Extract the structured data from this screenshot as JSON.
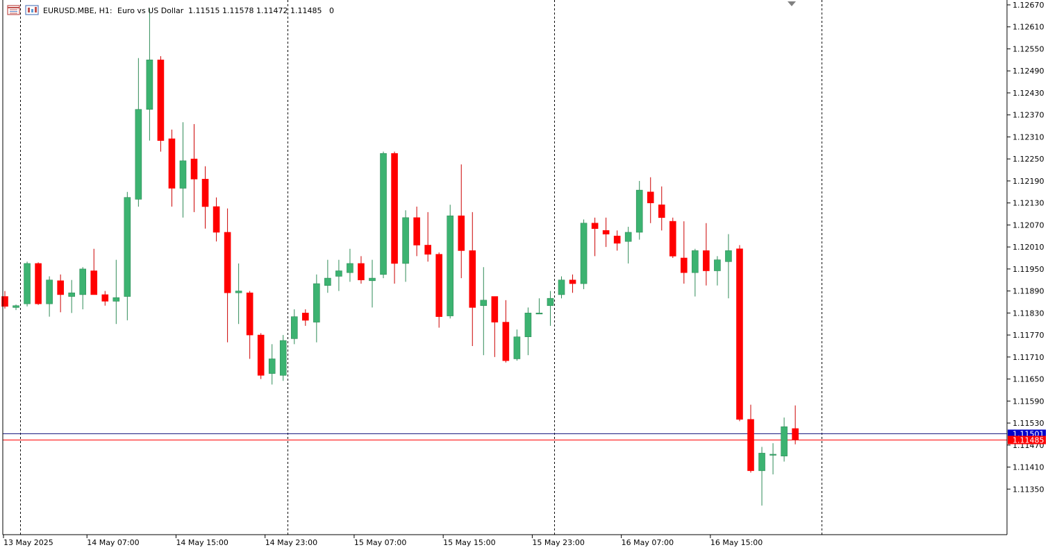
{
  "header": {
    "symbol_label": "EURUSD.MBE, H1:",
    "description": "Euro vs US Dollar",
    "ohlc": "1.11515 1.11578 1.11472 1.11485",
    "extra": "0",
    "icons": [
      "chart-window-icon",
      "instrument-icon"
    ]
  },
  "colors": {
    "bull": "#3cb371",
    "bear": "#ff0000",
    "wick_bull": "#2e8b57",
    "wick_bear": "#cc0000",
    "ask_line": "#1a1a80",
    "bid_line": "#ff0000",
    "ask_tag": "#0000cc",
    "bid_tag": "#ff0000"
  },
  "chart_data": {
    "type": "candlestick",
    "title": "",
    "xlabel": "",
    "ylabel": "",
    "ylim": [
      1.1129,
      1.1267
    ],
    "y_ticks": [
      "1.12670",
      "1.12610",
      "1.12550",
      "1.12490",
      "1.12430",
      "1.12370",
      "1.12310",
      "1.12250",
      "1.12190",
      "1.12130",
      "1.12070",
      "1.12010",
      "1.11950",
      "1.11890",
      "1.11830",
      "1.11770",
      "1.11710",
      "1.11650",
      "1.11590",
      "1.11530",
      "1.11470",
      "1.11410",
      "1.11350"
    ],
    "x_tick_labels": [
      "13 May 2025",
      "14 May 07:00",
      "14 May 15:00",
      "14 May 23:00",
      "15 May 07:00",
      "15 May 15:00",
      "15 May 23:00",
      "16 May 07:00",
      "16 May 15:00"
    ],
    "period_separators": 4,
    "ask_price": "1.11501",
    "bid_price": "1.11485",
    "candles": [
      {
        "o": 1.11875,
        "h": 1.1189,
        "l": 1.11842,
        "c": 1.11848
      },
      {
        "o": 1.11845,
        "h": 1.11853,
        "l": 1.11838,
        "c": 1.1185
      },
      {
        "o": 1.11855,
        "h": 1.1197,
        "l": 1.11848,
        "c": 1.11965
      },
      {
        "o": 1.11965,
        "h": 1.11968,
        "l": 1.11852,
        "c": 1.11855
      },
      {
        "o": 1.11855,
        "h": 1.1193,
        "l": 1.1182,
        "c": 1.1192
      },
      {
        "o": 1.11918,
        "h": 1.11935,
        "l": 1.11832,
        "c": 1.1188
      },
      {
        "o": 1.11875,
        "h": 1.1192,
        "l": 1.1183,
        "c": 1.11885
      },
      {
        "o": 1.1188,
        "h": 1.11955,
        "l": 1.1184,
        "c": 1.1195
      },
      {
        "o": 1.11945,
        "h": 1.12005,
        "l": 1.1188,
        "c": 1.1188
      },
      {
        "o": 1.1188,
        "h": 1.1189,
        "l": 1.1185,
        "c": 1.11862
      },
      {
        "o": 1.11862,
        "h": 1.11975,
        "l": 1.118,
        "c": 1.11872
      },
      {
        "o": 1.11875,
        "h": 1.1216,
        "l": 1.1181,
        "c": 1.12145
      },
      {
        "o": 1.1214,
        "h": 1.12525,
        "l": 1.1212,
        "c": 1.12385
      },
      {
        "o": 1.12385,
        "h": 1.1266,
        "l": 1.123,
        "c": 1.1252
      },
      {
        "o": 1.1252,
        "h": 1.1253,
        "l": 1.1227,
        "c": 1.123
      },
      {
        "o": 1.12305,
        "h": 1.1233,
        "l": 1.1212,
        "c": 1.1217
      },
      {
        "o": 1.1217,
        "h": 1.1235,
        "l": 1.1209,
        "c": 1.12245
      },
      {
        "o": 1.1225,
        "h": 1.12345,
        "l": 1.12105,
        "c": 1.12195
      },
      {
        "o": 1.12195,
        "h": 1.1223,
        "l": 1.1206,
        "c": 1.1212
      },
      {
        "o": 1.1212,
        "h": 1.12145,
        "l": 1.12025,
        "c": 1.1205
      },
      {
        "o": 1.1205,
        "h": 1.12115,
        "l": 1.1175,
        "c": 1.11885
      },
      {
        "o": 1.11885,
        "h": 1.11965,
        "l": 1.118,
        "c": 1.1189
      },
      {
        "o": 1.11885,
        "h": 1.1189,
        "l": 1.11705,
        "c": 1.1177
      },
      {
        "o": 1.1177,
        "h": 1.11775,
        "l": 1.1165,
        "c": 1.1166
      },
      {
        "o": 1.11665,
        "h": 1.11745,
        "l": 1.11635,
        "c": 1.11705
      },
      {
        "o": 1.1166,
        "h": 1.1177,
        "l": 1.11645,
        "c": 1.11755
      },
      {
        "o": 1.1176,
        "h": 1.1184,
        "l": 1.11745,
        "c": 1.1182
      },
      {
        "o": 1.1183,
        "h": 1.1184,
        "l": 1.11795,
        "c": 1.1181
      },
      {
        "o": 1.11805,
        "h": 1.11935,
        "l": 1.1175,
        "c": 1.1191
      },
      {
        "o": 1.11905,
        "h": 1.11975,
        "l": 1.11885,
        "c": 1.11925
      },
      {
        "o": 1.1193,
        "h": 1.11975,
        "l": 1.1189,
        "c": 1.11945
      },
      {
        "o": 1.1194,
        "h": 1.12005,
        "l": 1.11915,
        "c": 1.11965
      },
      {
        "o": 1.11965,
        "h": 1.11985,
        "l": 1.1191,
        "c": 1.1192
      },
      {
        "o": 1.11918,
        "h": 1.11975,
        "l": 1.11845,
        "c": 1.11925
      },
      {
        "o": 1.11935,
        "h": 1.1227,
        "l": 1.11925,
        "c": 1.12265
      },
      {
        "o": 1.12265,
        "h": 1.1227,
        "l": 1.1191,
        "c": 1.11965
      },
      {
        "o": 1.11965,
        "h": 1.1211,
        "l": 1.11915,
        "c": 1.1209
      },
      {
        "o": 1.1209,
        "h": 1.1212,
        "l": 1.11985,
        "c": 1.12015
      },
      {
        "o": 1.12015,
        "h": 1.12105,
        "l": 1.1197,
        "c": 1.1199
      },
      {
        "o": 1.1199,
        "h": 1.11995,
        "l": 1.1179,
        "c": 1.1182
      },
      {
        "o": 1.11822,
        "h": 1.12125,
        "l": 1.11815,
        "c": 1.12095
      },
      {
        "o": 1.12095,
        "h": 1.12235,
        "l": 1.11925,
        "c": 1.12
      },
      {
        "o": 1.12,
        "h": 1.12105,
        "l": 1.1174,
        "c": 1.11845
      },
      {
        "o": 1.1185,
        "h": 1.11955,
        "l": 1.11715,
        "c": 1.11865
      },
      {
        "o": 1.11875,
        "h": 1.11875,
        "l": 1.1171,
        "c": 1.11805
      },
      {
        "o": 1.11805,
        "h": 1.11865,
        "l": 1.11695,
        "c": 1.117
      },
      {
        "o": 1.11705,
        "h": 1.11785,
        "l": 1.117,
        "c": 1.11765
      },
      {
        "o": 1.11765,
        "h": 1.11845,
        "l": 1.11715,
        "c": 1.1183
      },
      {
        "o": 1.1183,
        "h": 1.1187,
        "l": 1.1183,
        "c": 1.1183
      },
      {
        "o": 1.1185,
        "h": 1.1189,
        "l": 1.11795,
        "c": 1.1187
      },
      {
        "o": 1.1188,
        "h": 1.1193,
        "l": 1.1187,
        "c": 1.1192
      },
      {
        "o": 1.1192,
        "h": 1.11935,
        "l": 1.11885,
        "c": 1.1191
      },
      {
        "o": 1.1191,
        "h": 1.12085,
        "l": 1.11895,
        "c": 1.12075
      },
      {
        "o": 1.12075,
        "h": 1.1209,
        "l": 1.11985,
        "c": 1.1206
      },
      {
        "o": 1.12055,
        "h": 1.1209,
        "l": 1.1201,
        "c": 1.12045
      },
      {
        "o": 1.1204,
        "h": 1.12055,
        "l": 1.12,
        "c": 1.1202
      },
      {
        "o": 1.12025,
        "h": 1.12065,
        "l": 1.11965,
        "c": 1.1205
      },
      {
        "o": 1.1205,
        "h": 1.1219,
        "l": 1.1203,
        "c": 1.12165
      },
      {
        "o": 1.1216,
        "h": 1.122,
        "l": 1.12075,
        "c": 1.1213
      },
      {
        "o": 1.12125,
        "h": 1.12175,
        "l": 1.12055,
        "c": 1.1209
      },
      {
        "o": 1.1208,
        "h": 1.1209,
        "l": 1.1198,
        "c": 1.11985
      },
      {
        "o": 1.1198,
        "h": 1.1208,
        "l": 1.1191,
        "c": 1.1194
      },
      {
        "o": 1.1194,
        "h": 1.12005,
        "l": 1.11875,
        "c": 1.12
      },
      {
        "o": 1.12,
        "h": 1.12075,
        "l": 1.11905,
        "c": 1.11945
      },
      {
        "o": 1.11945,
        "h": 1.11985,
        "l": 1.11905,
        "c": 1.11975
      },
      {
        "o": 1.1197,
        "h": 1.12045,
        "l": 1.1187,
        "c": 1.12
      },
      {
        "o": 1.12005,
        "h": 1.12015,
        "l": 1.11535,
        "c": 1.1154
      },
      {
        "o": 1.1154,
        "h": 1.1158,
        "l": 1.11395,
        "c": 1.114
      },
      {
        "o": 1.114,
        "h": 1.11465,
        "l": 1.11305,
        "c": 1.11448
      },
      {
        "o": 1.11445,
        "h": 1.11475,
        "l": 1.1139,
        "c": 1.11445
      },
      {
        "o": 1.1144,
        "h": 1.11545,
        "l": 1.11425,
        "c": 1.1152
      },
      {
        "o": 1.11515,
        "h": 1.11578,
        "l": 1.11472,
        "c": 1.11485
      }
    ]
  }
}
